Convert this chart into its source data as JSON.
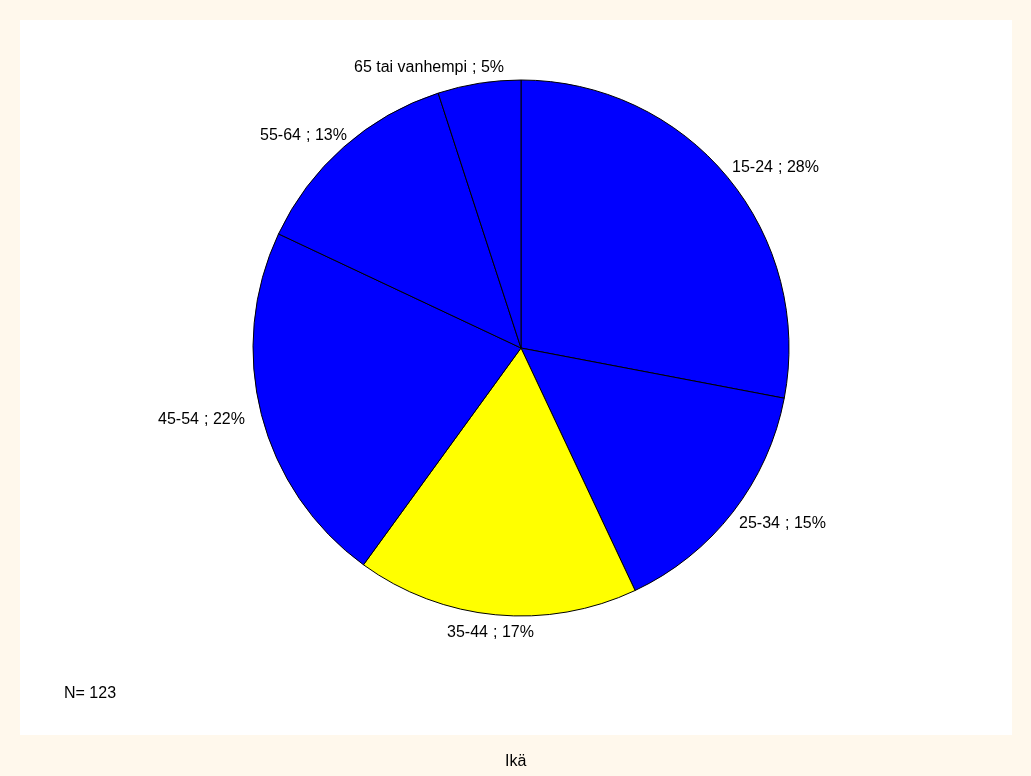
{
  "chart_data": {
    "type": "pie",
    "title": "Ikä",
    "categories": [
      "15-24",
      "25-34",
      "35-44",
      "45-54",
      "55-64",
      "65 tai vanhempi"
    ],
    "values": [
      28,
      15,
      17,
      22,
      13,
      5
    ],
    "value_labels": [
      "; 28%",
      "; 15%",
      "; 17%",
      "; 22%",
      "; 13%",
      "; 5%"
    ],
    "colors": [
      "#0000ff",
      "#0000ff",
      "#ffff00",
      "#0000ff",
      "#0000ff",
      "#0000ff"
    ],
    "legend": false,
    "annotations": [
      "N= 123"
    ]
  }
}
